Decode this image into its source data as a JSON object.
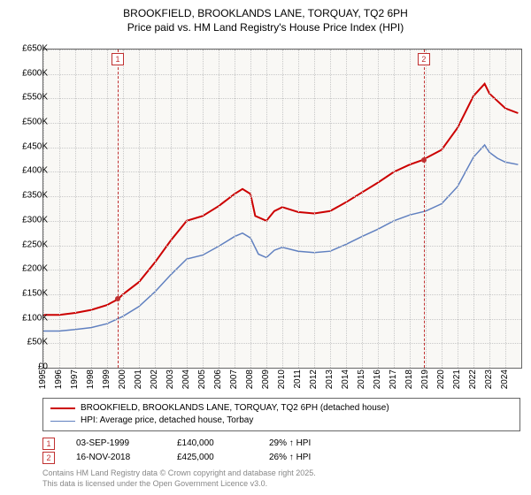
{
  "title": {
    "line1": "BROOKFIELD, BROOKLANDS LANE, TORQUAY, TQ2 6PH",
    "line2": "Price paid vs. HM Land Registry's House Price Index (HPI)"
  },
  "chart": {
    "type": "line",
    "background_color": "#f9f8f5",
    "grid_color": "#c8c8c8",
    "border_color": "#666666",
    "ylim": [
      0,
      650000
    ],
    "ytick_step": 50000,
    "yticks": [
      "£0",
      "£50K",
      "£100K",
      "£150K",
      "£200K",
      "£250K",
      "£300K",
      "£350K",
      "£400K",
      "£450K",
      "£500K",
      "£550K",
      "£600K",
      "£650K"
    ],
    "xticks": [
      "1995",
      "1996",
      "1997",
      "1998",
      "1999",
      "2000",
      "2001",
      "2002",
      "2003",
      "2004",
      "2005",
      "2006",
      "2007",
      "2008",
      "2009",
      "2010",
      "2011",
      "2012",
      "2013",
      "2014",
      "2015",
      "2016",
      "2017",
      "2018",
      "2019",
      "2020",
      "2021",
      "2022",
      "2023",
      "2024"
    ],
    "xlim": [
      1995,
      2025
    ],
    "series": [
      {
        "name": "price_paid",
        "label": "BROOKFIELD, BROOKLANDS LANE, TORQUAY, TQ2 6PH (detached house)",
        "color": "#cc0000",
        "line_width": 2,
        "data": [
          [
            1995,
            108000
          ],
          [
            1996,
            108000
          ],
          [
            1997,
            112000
          ],
          [
            1998,
            118000
          ],
          [
            1999,
            128000
          ],
          [
            1999.67,
            140000
          ],
          [
            2000,
            150000
          ],
          [
            2001,
            175000
          ],
          [
            2002,
            215000
          ],
          [
            2003,
            260000
          ],
          [
            2004,
            300000
          ],
          [
            2005,
            310000
          ],
          [
            2006,
            330000
          ],
          [
            2007,
            355000
          ],
          [
            2007.5,
            365000
          ],
          [
            2008,
            355000
          ],
          [
            2008.3,
            310000
          ],
          [
            2009,
            300000
          ],
          [
            2009.5,
            320000
          ],
          [
            2010,
            328000
          ],
          [
            2011,
            318000
          ],
          [
            2012,
            315000
          ],
          [
            2013,
            320000
          ],
          [
            2014,
            338000
          ],
          [
            2015,
            358000
          ],
          [
            2016,
            378000
          ],
          [
            2017,
            400000
          ],
          [
            2018,
            415000
          ],
          [
            2018.88,
            425000
          ],
          [
            2019,
            428000
          ],
          [
            2020,
            445000
          ],
          [
            2021,
            490000
          ],
          [
            2022,
            555000
          ],
          [
            2022.7,
            580000
          ],
          [
            2023,
            560000
          ],
          [
            2023.5,
            545000
          ],
          [
            2024,
            530000
          ],
          [
            2024.8,
            520000
          ]
        ]
      },
      {
        "name": "hpi",
        "label": "HPI: Average price, detached house, Torbay",
        "color": "#6080c0",
        "line_width": 1.5,
        "data": [
          [
            1995,
            75000
          ],
          [
            1996,
            75000
          ],
          [
            1997,
            78000
          ],
          [
            1998,
            82000
          ],
          [
            1999,
            90000
          ],
          [
            2000,
            105000
          ],
          [
            2001,
            125000
          ],
          [
            2002,
            155000
          ],
          [
            2003,
            190000
          ],
          [
            2004,
            222000
          ],
          [
            2005,
            230000
          ],
          [
            2006,
            248000
          ],
          [
            2007,
            268000
          ],
          [
            2007.5,
            275000
          ],
          [
            2008,
            265000
          ],
          [
            2008.5,
            232000
          ],
          [
            2009,
            225000
          ],
          [
            2009.5,
            240000
          ],
          [
            2010,
            246000
          ],
          [
            2011,
            238000
          ],
          [
            2012,
            235000
          ],
          [
            2013,
            238000
          ],
          [
            2014,
            252000
          ],
          [
            2015,
            268000
          ],
          [
            2016,
            283000
          ],
          [
            2017,
            300000
          ],
          [
            2018,
            312000
          ],
          [
            2019,
            320000
          ],
          [
            2020,
            335000
          ],
          [
            2021,
            370000
          ],
          [
            2022,
            430000
          ],
          [
            2022.7,
            455000
          ],
          [
            2023,
            440000
          ],
          [
            2023.5,
            428000
          ],
          [
            2024,
            420000
          ],
          [
            2024.8,
            415000
          ]
        ]
      }
    ],
    "markers": [
      {
        "id": "1",
        "x": 1999.67,
        "y": 140000
      },
      {
        "id": "2",
        "x": 2018.88,
        "y": 425000
      }
    ]
  },
  "legend": {
    "rows": [
      {
        "color": "#cc0000",
        "width": 2,
        "label": "BROOKFIELD, BROOKLANDS LANE, TORQUAY, TQ2 6PH (detached house)"
      },
      {
        "color": "#6080c0",
        "width": 1.5,
        "label": "HPI: Average price, detached house, Torbay"
      }
    ]
  },
  "data_points": [
    {
      "id": "1",
      "date": "03-SEP-1999",
      "price": "£140,000",
      "pct": "29% ↑ HPI"
    },
    {
      "id": "2",
      "date": "16-NOV-2018",
      "price": "£425,000",
      "pct": "26% ↑ HPI"
    }
  ],
  "footer": {
    "line1": "Contains HM Land Registry data © Crown copyright and database right 2025.",
    "line2": "This data is licensed under the Open Government Licence v3.0."
  }
}
